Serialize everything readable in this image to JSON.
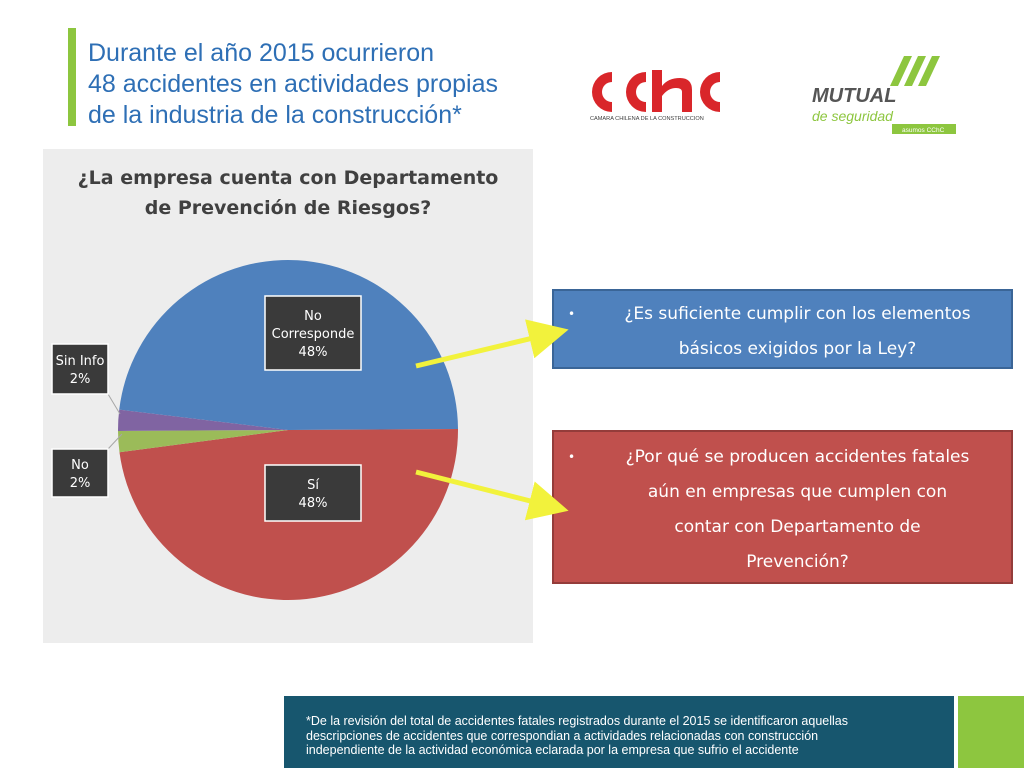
{
  "header": {
    "title_lines": [
      "Durante el año 2015 ocurrieron",
      "48 accidentes en actividades propias",
      "de la industria de la construcción*"
    ]
  },
  "logos": {
    "cchc": {
      "text": "cchc",
      "subtext": "CAMARA CHILENA DE LA CONSTRUCCION",
      "color": "#d9262a"
    },
    "mutual": {
      "text": "MUTUAL",
      "subtext": "de seguridad",
      "tagline": "asumos CChC",
      "color": "#8dc63f"
    }
  },
  "chart_data": {
    "type": "pie",
    "title_lines": [
      "¿La empresa cuenta con Departamento",
      "de Prevención de Riesgos?"
    ],
    "slices": [
      {
        "name_lines": [
          "No",
          "Corresponde"
        ],
        "label": "48%",
        "value": 48,
        "color": "#4f81bd"
      },
      {
        "name_lines": [
          "Sí"
        ],
        "label": "48%",
        "value": 48,
        "color": "#c0504d"
      },
      {
        "name_lines": [
          "No"
        ],
        "label": "2%",
        "value": 2,
        "color": "#9bbb59"
      },
      {
        "name_lines": [
          "Sin Info"
        ],
        "label": "2%",
        "value": 2,
        "color": "#8064a2"
      }
    ]
  },
  "callouts": [
    {
      "bullet": "•",
      "lines": [
        "¿Es suficiente cumplir con los elementos",
        "básicos exigidos por la Ley?"
      ],
      "color": "#4f81bd"
    },
    {
      "bullet": "•",
      "lines": [
        "¿Por qué se producen accidentes fatales",
        "aún en empresas que cumplen con",
        "contar con Departamento de",
        "Prevención?"
      ],
      "color": "#c0504d"
    }
  ],
  "footer": {
    "lines": [
      "*De la revisión del total de accidentes fatales registrados durante el 2015 se identificaron aquellas",
      "descripciones de accidentes que correspondian a actividades relacionadas con construcción",
      "independiente de la actividad económica eclarada por la empresa que sufrio el accidente"
    ]
  }
}
